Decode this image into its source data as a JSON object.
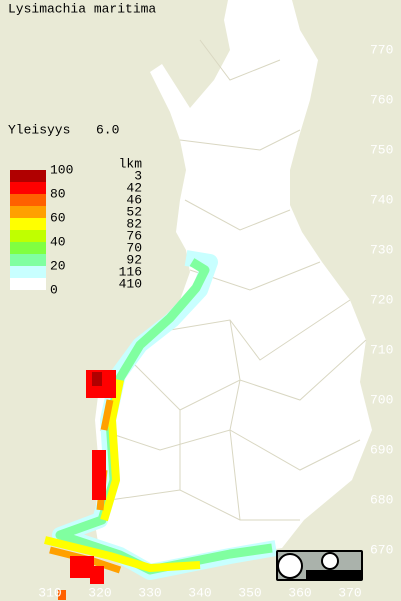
{
  "title": "Lysimachia maritima",
  "frequency": {
    "label": "Yleisyys",
    "value": "6.0"
  },
  "legend": {
    "scale": [
      "100",
      "80",
      "60",
      "40",
      "20",
      "0"
    ],
    "count_header": "lkm",
    "counts": [
      "3",
      "42",
      "46",
      "52",
      "82",
      "76",
      "70",
      "92",
      "116",
      "410"
    ]
  },
  "grid_labels": {
    "north": [
      "770",
      "760",
      "750",
      "740",
      "730",
      "720",
      "710",
      "700",
      "690",
      "680",
      "670"
    ],
    "east": [
      "310",
      "320",
      "330",
      "340",
      "350",
      "360",
      "370"
    ]
  }
}
